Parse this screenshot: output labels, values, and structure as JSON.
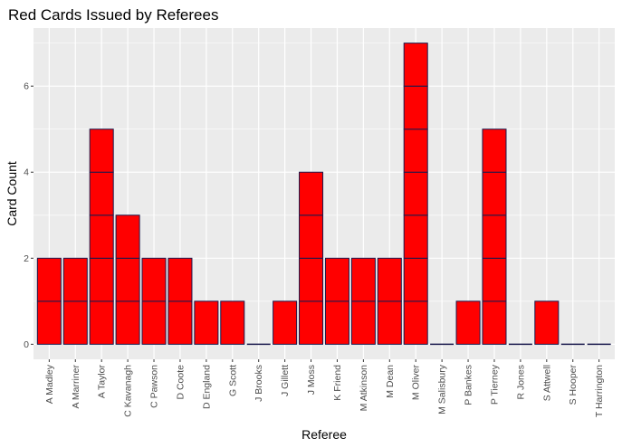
{
  "chart_data": {
    "type": "bar",
    "title": "Red Cards Issued by Referees",
    "xlabel": "Referee",
    "ylabel": "Card Count",
    "categories": [
      "A Madley",
      "A Marriner",
      "A Taylor",
      "C Kavanagh",
      "C Pawson",
      "D Coote",
      "D England",
      "G Scott",
      "J Brooks",
      "J Gillett",
      "J Moss",
      "K Friend",
      "M Atkinson",
      "M Dean",
      "M Oliver",
      "M Salisbury",
      "P Bankes",
      "P Tierney",
      "R Jones",
      "S Attwell",
      "S Hooper",
      "T Harrington"
    ],
    "values": [
      2,
      2,
      5,
      3,
      2,
      2,
      1,
      1,
      0,
      1,
      4,
      2,
      2,
      2,
      7,
      0,
      1,
      5,
      0,
      1,
      0,
      0
    ],
    "ylim": [
      -0.35,
      7.35
    ],
    "yticks": [
      0,
      2,
      4,
      6
    ],
    "grid": true,
    "colors": {
      "bar_fill": "#FF0000",
      "bar_outline": "#1A1A4D",
      "panel_bg": "#EBEBEB",
      "grid": "#FFFFFF"
    }
  }
}
